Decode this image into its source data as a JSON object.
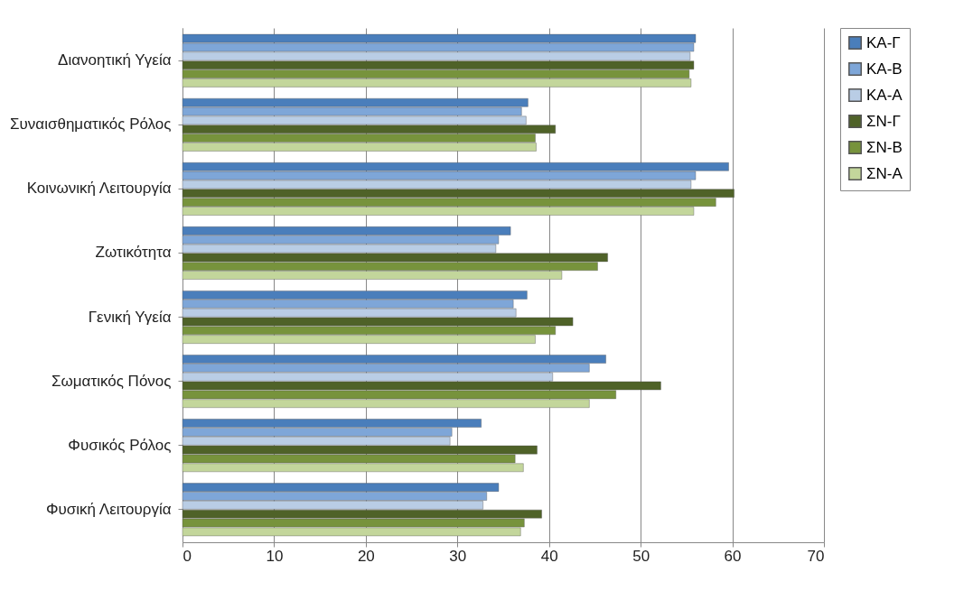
{
  "chart_data": {
    "type": "bar",
    "orientation": "horizontal",
    "categories": [
      "Διανοητική Υγεία",
      "Συναισθηματικός Ρόλος",
      "Κοινωνική Λειτουργία",
      "Ζωτικότητα",
      "Γενική Υγεία",
      "Σωματικός Πόνος",
      "Φυσικός Ρόλος",
      "Φυσική Λειτουργία"
    ],
    "series": [
      {
        "name": "ΚΑ-Γ",
        "color": "#4a7ebb",
        "values": [
          56.0,
          37.7,
          59.6,
          35.8,
          37.6,
          46.2,
          32.6,
          34.5
        ]
      },
      {
        "name": "ΚΑ-Β",
        "color": "#7ea6d8",
        "values": [
          55.8,
          37.0,
          56.0,
          34.5,
          36.1,
          44.4,
          29.4,
          33.2
        ]
      },
      {
        "name": "ΚΑ-Α",
        "color": "#b9cde5",
        "values": [
          55.4,
          37.5,
          55.5,
          34.2,
          36.4,
          40.4,
          29.2,
          32.8
        ]
      },
      {
        "name": "ΣΝ-Γ",
        "color": "#4f6228",
        "values": [
          55.8,
          40.7,
          60.2,
          46.4,
          42.6,
          52.2,
          38.7,
          39.2
        ]
      },
      {
        "name": "ΣΝ-Β",
        "color": "#77933c",
        "values": [
          55.3,
          38.5,
          58.2,
          45.3,
          40.7,
          47.3,
          36.3,
          37.3
        ]
      },
      {
        "name": "ΣΝ-Α",
        "color": "#c3d69b",
        "values": [
          55.5,
          38.6,
          55.8,
          41.4,
          38.5,
          44.4,
          37.2,
          36.9
        ]
      }
    ],
    "xlim": [
      0,
      70
    ],
    "xticks": [
      0,
      10,
      20,
      30,
      40,
      50,
      60,
      70
    ],
    "grid": "x",
    "legend": "right"
  }
}
